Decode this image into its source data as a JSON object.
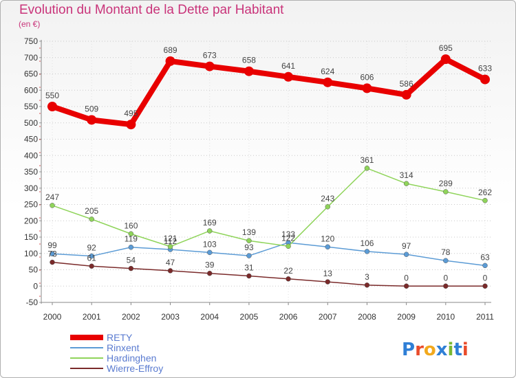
{
  "header": {
    "title": "Evolution du Montant de la Dette par Habitant",
    "subtitle": "(en €)"
  },
  "logo": {
    "text": "Proxiti",
    "letters": [
      {
        "ch": "P",
        "color": "#2f7fd6"
      },
      {
        "ch": "r",
        "color": "#e94b2b"
      },
      {
        "ch": "o",
        "color": "#f2a91d"
      },
      {
        "ch": "x",
        "color": "#2f7fd6"
      },
      {
        "ch": "i",
        "color": "#7ab833"
      },
      {
        "ch": "t",
        "color": "#2f7fd6"
      },
      {
        "ch": "i",
        "color": "#e94b2b"
      }
    ]
  },
  "chart_data": {
    "type": "line",
    "title": "Evolution du Montant de la Dette par Habitant",
    "subtitle": "(en €)",
    "x": [
      "2000",
      "2001",
      "2002",
      "2003",
      "2004",
      "2005",
      "2006",
      "2007",
      "2008",
      "2009",
      "2010",
      "2011"
    ],
    "ylim": [
      -50,
      750
    ],
    "yticks": [
      -50,
      0,
      50,
      100,
      150,
      200,
      250,
      300,
      350,
      400,
      450,
      500,
      550,
      600,
      650,
      700,
      750
    ],
    "grid": "horizontal dotted",
    "legend_position": "bottom-left",
    "series": [
      {
        "name": "RETY",
        "color": "#e80000",
        "width": 8,
        "marker": 7,
        "values": [
          550,
          509,
          495,
          689,
          673,
          658,
          641,
          624,
          606,
          586,
          695,
          633
        ]
      },
      {
        "name": "Rinxent",
        "color": "#5b9bd5",
        "width": 1.5,
        "marker": 3.5,
        "values": [
          99,
          92,
          119,
          112,
          103,
          93,
          133,
          120,
          106,
          97,
          78,
          63
        ]
      },
      {
        "name": "Hardinghen",
        "color": "#8fd45a",
        "width": 1.5,
        "marker": 3.5,
        "values": [
          247,
          205,
          160,
          121,
          169,
          139,
          122,
          243,
          361,
          314,
          289,
          262
        ]
      },
      {
        "name": "Wierre-Effroy",
        "color": "#7a2a2a",
        "width": 1.5,
        "marker": 3.5,
        "values": [
          73,
          61,
          54,
          47,
          39,
          31,
          22,
          13,
          3,
          0,
          0,
          0
        ]
      }
    ],
    "label_order": [
      "Wierre-Effroy",
      "Rinxent",
      "Hardinghen",
      "RETY"
    ]
  }
}
